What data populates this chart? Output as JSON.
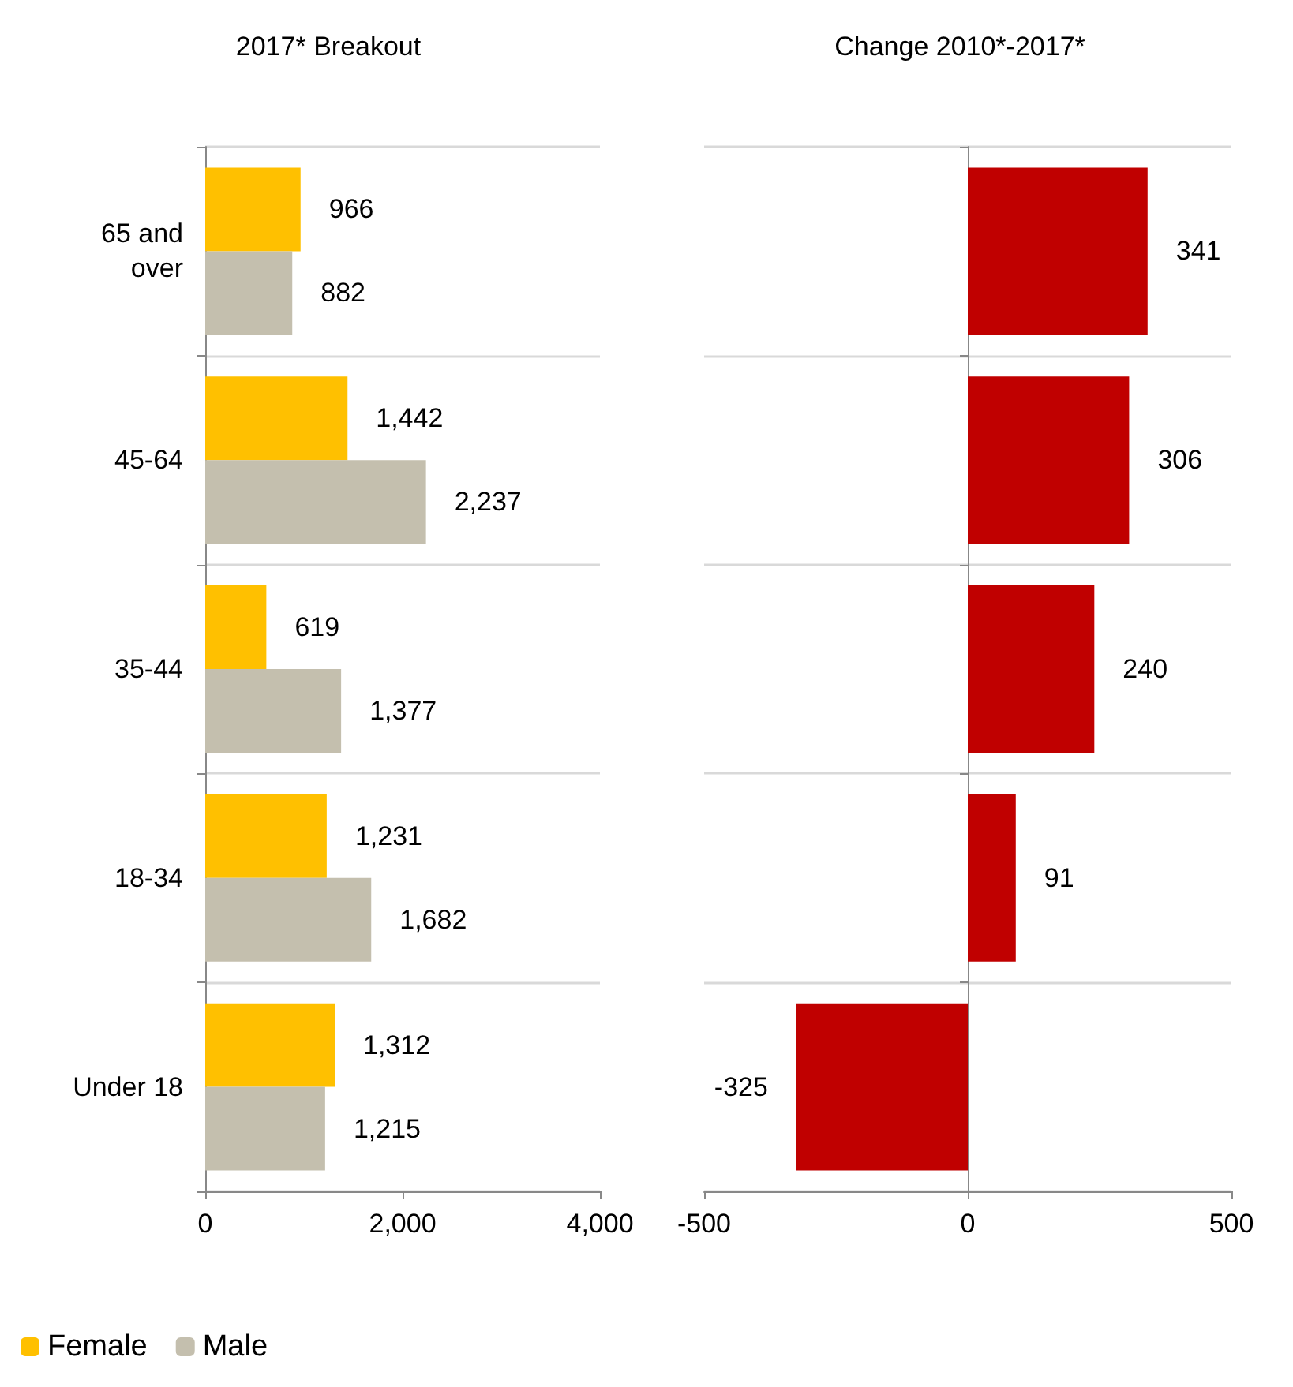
{
  "chart_data": [
    {
      "type": "bar",
      "orientation": "horizontal",
      "title": "2017* Breakout",
      "categories": [
        "65 and\nover",
        "45-64",
        "35-44",
        "18-34",
        "Under 18"
      ],
      "series": [
        {
          "name": "Female",
          "color": "#ffc000",
          "values": [
            966,
            1442,
            619,
            1231,
            1312
          ],
          "value_labels": [
            "966",
            "1,442",
            "619",
            "1,231",
            "1,312"
          ]
        },
        {
          "name": "Male",
          "color": "#c4bfae",
          "values": [
            882,
            2237,
            1377,
            1682,
            1215
          ],
          "value_labels": [
            "882",
            "2,237",
            "1,377",
            "1,682",
            "1,215"
          ]
        }
      ],
      "xlim": [
        0,
        4000
      ],
      "xticks": [
        0,
        {
          "value": 2000,
          "label": "2,000"
        },
        {
          "value": 4000,
          "label": "4,000"
        }
      ],
      "grid": "y",
      "legend": "bottom"
    },
    {
      "type": "bar",
      "orientation": "horizontal",
      "title": "Change 2010*-2017*",
      "categories": [
        null,
        null,
        null,
        null,
        null
      ],
      "series": [
        {
          "color": "#c00000",
          "values": [
            341,
            306,
            240,
            91,
            -325
          ]
        }
      ],
      "xlim": [
        -500,
        500
      ],
      "xticks": [
        -500,
        0,
        500
      ],
      "grid": "y",
      "data_labels": true,
      "tick_labels": "x"
    }
  ]
}
